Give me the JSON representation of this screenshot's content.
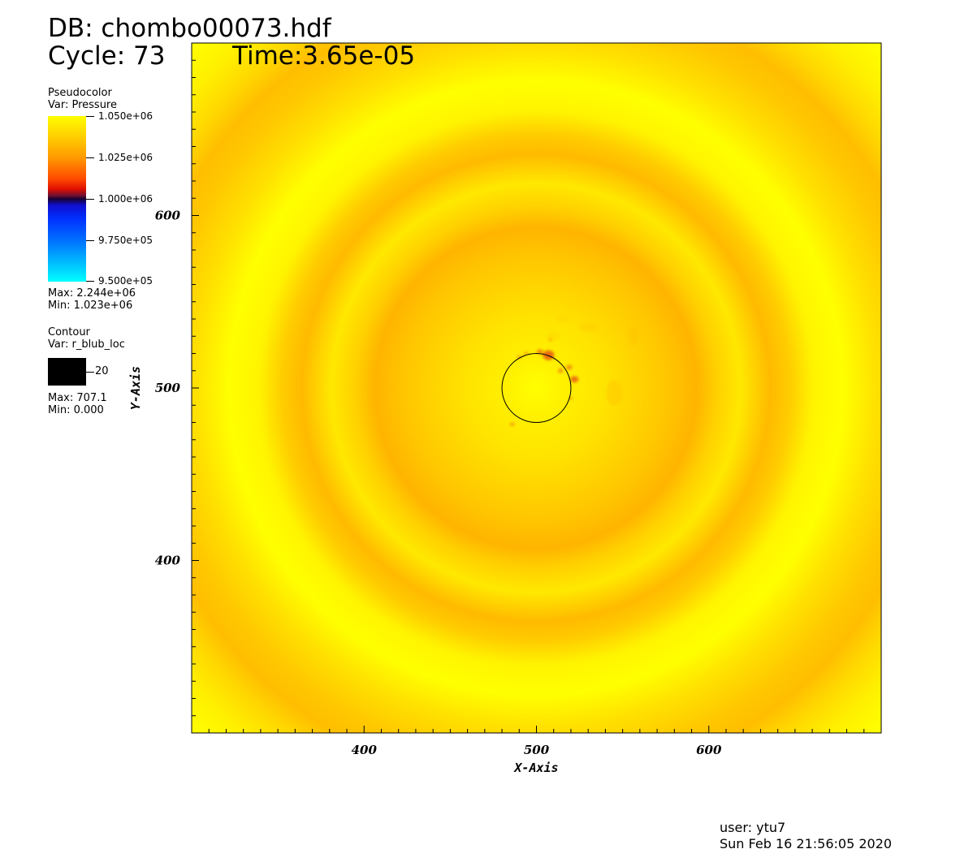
{
  "header": {
    "db": "DB: chombo00073.hdf",
    "cycle": "Cycle: 73",
    "time": "Time:3.65e-05"
  },
  "legend_pseudocolor": {
    "title": "Pseudocolor",
    "var": "Var: Pressure",
    "ticks": [
      "1.050e+06",
      "1.025e+06",
      "1.000e+06",
      "9.750e+05",
      "9.500e+05"
    ],
    "max": "Max: 2.244e+06",
    "min": "Min:  1.023e+06",
    "colors": [
      "#ffff00",
      "#ff9a00",
      "#e01000",
      "#180030",
      "#0030ff",
      "#00ffff"
    ]
  },
  "legend_contour": {
    "title": "Contour",
    "var": "Var: r_blub_loc",
    "tick": "20",
    "max": "Max: 707.1",
    "min": "Min: 0.000",
    "color": "#000000"
  },
  "footer": {
    "user": "user: ytu7",
    "date": "Sun Feb 16 21:56:05 2020"
  },
  "chart_data": {
    "type": "heatmap",
    "title": "",
    "xlabel": "X-Axis",
    "ylabel": "Y-Axis",
    "xlim": [
      300,
      700
    ],
    "ylim": [
      300,
      700
    ],
    "x_ticks": [
      400,
      500,
      600
    ],
    "y_ticks": [
      400,
      500,
      600
    ],
    "x_tick_labels": [
      "400",
      "500",
      "600"
    ],
    "y_tick_labels": [
      "400",
      "500",
      "600"
    ],
    "variable": "Pressure",
    "color_range": [
      950000,
      1050000
    ],
    "contour": {
      "variable": "r_blub_loc",
      "level": 20,
      "center": [
        500,
        500
      ],
      "radius": 20
    },
    "grid": false,
    "field_colors": {
      "base": "#ffff00",
      "ring": "#ffa000",
      "center_spots": "#e86010"
    }
  }
}
